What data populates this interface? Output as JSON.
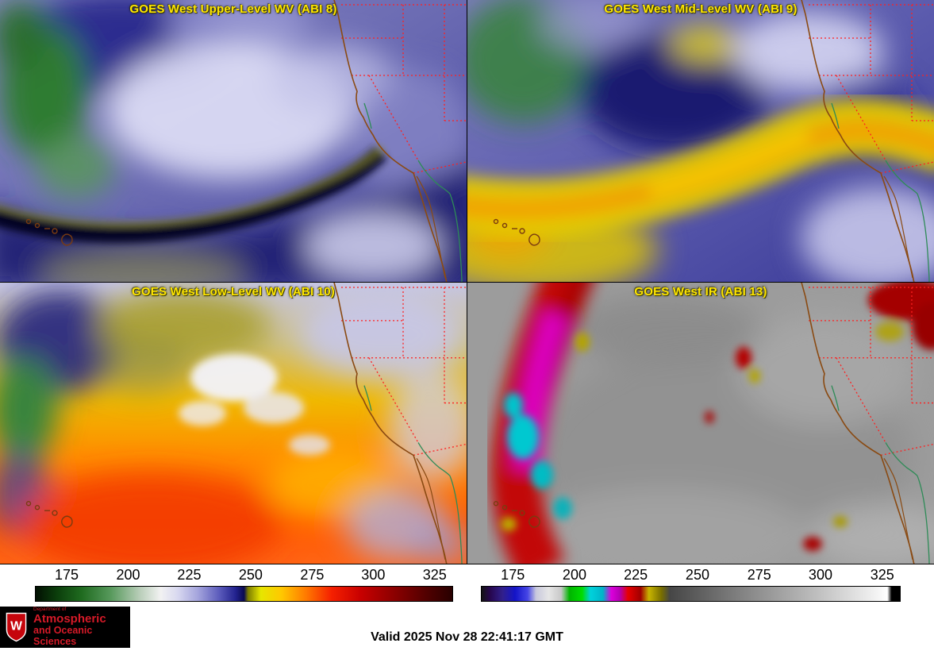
{
  "panels": [
    {
      "id": "upper-wv",
      "title": "GOES West Upper-Level WV (ABI 8)"
    },
    {
      "id": "mid-wv",
      "title": "GOES West Mid-Level WV (ABI 9)"
    },
    {
      "id": "low-wv",
      "title": "GOES West Low-Level WV (ABI 10)"
    },
    {
      "id": "ir",
      "title": "GOES West IR (ABI 13)"
    }
  ],
  "colorbars": {
    "left": {
      "name": "water-vapor-temperature-scale",
      "ticks": [
        {
          "label": "175",
          "pos": 7.6
        },
        {
          "label": "200",
          "pos": 22.3
        },
        {
          "label": "225",
          "pos": 36.9
        },
        {
          "label": "250",
          "pos": 51.6
        },
        {
          "label": "275",
          "pos": 66.3
        },
        {
          "label": "300",
          "pos": 80.9
        },
        {
          "label": "325",
          "pos": 95.6
        }
      ],
      "stops": [
        {
          "p": 0,
          "c": "#020f02"
        },
        {
          "p": 5,
          "c": "#0b3d0b"
        },
        {
          "p": 11,
          "c": "#1f6b1f"
        },
        {
          "p": 18,
          "c": "#57995c"
        },
        {
          "p": 25,
          "c": "#b9ceb9"
        },
        {
          "p": 30,
          "c": "#f2f2f2"
        },
        {
          "p": 34,
          "c": "#d9d9f0"
        },
        {
          "p": 39,
          "c": "#a3a3dc"
        },
        {
          "p": 44,
          "c": "#5c5cbc"
        },
        {
          "p": 48,
          "c": "#22228e"
        },
        {
          "p": 50,
          "c": "#0a0a50"
        },
        {
          "p": 51,
          "c": "#7d7d00"
        },
        {
          "p": 54,
          "c": "#e6e600"
        },
        {
          "p": 59,
          "c": "#ffc800"
        },
        {
          "p": 65,
          "c": "#ff7800"
        },
        {
          "p": 71,
          "c": "#f52000"
        },
        {
          "p": 78,
          "c": "#c80000"
        },
        {
          "p": 86,
          "c": "#8c0000"
        },
        {
          "p": 94,
          "c": "#500000"
        },
        {
          "p": 100,
          "c": "#280000"
        }
      ]
    },
    "right": {
      "name": "ir-temperature-scale",
      "ticks": [
        {
          "label": "175",
          "pos": 7.6
        },
        {
          "label": "200",
          "pos": 22.3
        },
        {
          "label": "225",
          "pos": 36.9
        },
        {
          "label": "250",
          "pos": 51.6
        },
        {
          "label": "275",
          "pos": 66.3
        },
        {
          "label": "300",
          "pos": 80.9
        },
        {
          "label": "325",
          "pos": 95.6
        }
      ],
      "stops": [
        {
          "p": 0,
          "c": "#141414"
        },
        {
          "p": 2,
          "c": "#26064d"
        },
        {
          "p": 5,
          "c": "#31208c"
        },
        {
          "p": 8,
          "c": "#1414c8"
        },
        {
          "p": 11,
          "c": "#4646e6"
        },
        {
          "p": 13,
          "c": "#c8c8dc"
        },
        {
          "p": 16,
          "c": "#e6e6e6"
        },
        {
          "p": 19,
          "c": "#c8c8c8"
        },
        {
          "p": 21,
          "c": "#00b400"
        },
        {
          "p": 24,
          "c": "#00dc00"
        },
        {
          "p": 26,
          "c": "#00d2dc"
        },
        {
          "p": 29,
          "c": "#00b4c8"
        },
        {
          "p": 31,
          "c": "#dc00dc"
        },
        {
          "p": 33,
          "c": "#b400b4"
        },
        {
          "p": 35,
          "c": "#e60000"
        },
        {
          "p": 38,
          "c": "#a00000"
        },
        {
          "p": 40,
          "c": "#c8b400"
        },
        {
          "p": 43,
          "c": "#786e00"
        },
        {
          "p": 45,
          "c": "#464646"
        },
        {
          "p": 62,
          "c": "#828282"
        },
        {
          "p": 80,
          "c": "#bebebe"
        },
        {
          "p": 95,
          "c": "#f5f5f5"
        },
        {
          "p": 97,
          "c": "#ffffff"
        },
        {
          "p": 98,
          "c": "#000000"
        },
        {
          "p": 100,
          "c": "#000000"
        }
      ]
    }
  },
  "footer": {
    "valid_time": "Valid 2025 Nov 28 22:41:17 GMT",
    "logo": {
      "crest_letter": "W",
      "line1": "Department of",
      "line2": "Atmospheric",
      "line3": "and Oceanic Sciences"
    }
  },
  "colors": {
    "panel_title": "#ffe600",
    "state_boundary": "#ff2020",
    "coastline": "#8a4a12",
    "rivers": "#2e8b57",
    "logo_red": "#d61a28",
    "logo_bg": "#000000"
  }
}
